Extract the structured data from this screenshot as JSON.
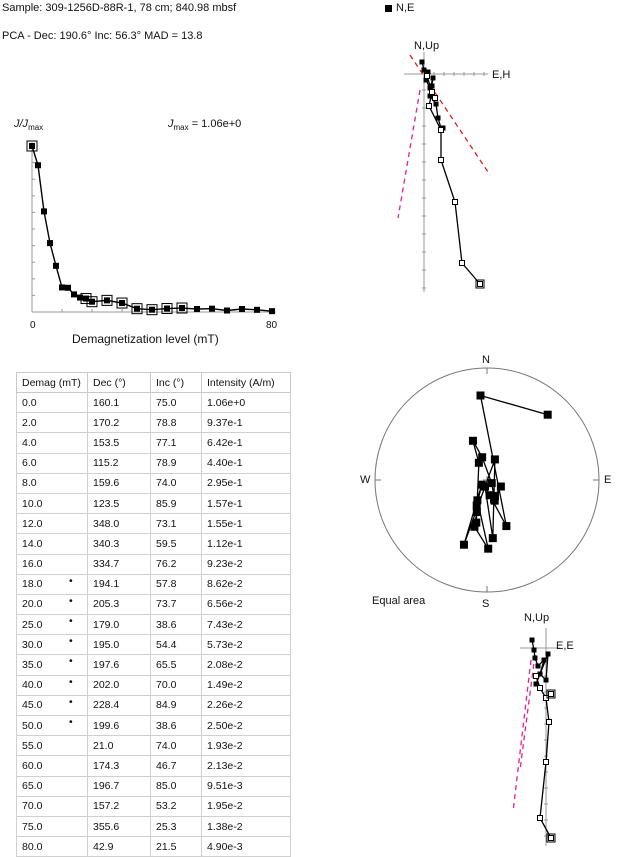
{
  "header": {
    "sample": "Sample: 309-1256D-88R-1, 78 cm; 840.98 mbsf",
    "pca": "PCA - Dec: 190.6°   Inc: 56.3°   MAD = 13.8",
    "legend_label": "N,E"
  },
  "intensity_plot": {
    "ylabel_j": "J/J",
    "ylabel_sub": "max",
    "jmax_label": "J",
    "jmax_sub": "max",
    "jmax_value": "=  1.06e+0",
    "xlabel": "Demagnetization level (mT)",
    "x_tick_0": "0",
    "x_tick_80": "80"
  },
  "stereonet": {
    "n": "N",
    "s": "S",
    "e": "E",
    "w": "W",
    "caption": "Equal area"
  },
  "zijderveld_top": {
    "up_label": "N,Up",
    "h_label": "E,H"
  },
  "zijderveld_bottom": {
    "up_label": "N,Up",
    "h_label": "E,E"
  },
  "table": {
    "headers": [
      "Demag (mT)",
      "Dec (°)",
      "Inc (°)",
      "Intensity (A/m)"
    ],
    "rows": [
      {
        "demag": "0.0",
        "dec": "160.1",
        "inc": "75.0",
        "intensity": "1.06e+0",
        "dot": ""
      },
      {
        "demag": "2.0",
        "dec": "170.2",
        "inc": "78.8",
        "intensity": "9.37e-1",
        "dot": ""
      },
      {
        "demag": "4.0",
        "dec": "153.5",
        "inc": "77.1",
        "intensity": "6.42e-1",
        "dot": ""
      },
      {
        "demag": "6.0",
        "dec": "115.2",
        "inc": "78.9",
        "intensity": "4.40e-1",
        "dot": ""
      },
      {
        "demag": "8.0",
        "dec": "159.6",
        "inc": "74.0",
        "intensity": "2.95e-1",
        "dot": ""
      },
      {
        "demag": "10.0",
        "dec": "123.5",
        "inc": "85.9",
        "intensity": "1.57e-1",
        "dot": ""
      },
      {
        "demag": "12.0",
        "dec": "348.0",
        "inc": "73.1",
        "intensity": "1.55e-1",
        "dot": ""
      },
      {
        "demag": "14.0",
        "dec": "340.3",
        "inc": "59.5",
        "intensity": "1.12e-1",
        "dot": ""
      },
      {
        "demag": "16.0",
        "dec": "334.7",
        "inc": "76.2",
        "intensity": "9.23e-2",
        "dot": ""
      },
      {
        "demag": "18.0",
        "dec": "194.1",
        "inc": "57.8",
        "intensity": "8.62e-2",
        "dot": "•"
      },
      {
        "demag": "20.0",
        "dec": "205.3",
        "inc": "73.7",
        "intensity": "6.56e-2",
        "dot": "•"
      },
      {
        "demag": "25.0",
        "dec": "179.0",
        "inc": "38.6",
        "intensity": "7.43e-2",
        "dot": "•"
      },
      {
        "demag": "30.0",
        "dec": "195.0",
        "inc": "54.4",
        "intensity": "5.73e-2",
        "dot": "•"
      },
      {
        "demag": "35.0",
        "dec": "197.6",
        "inc": "65.5",
        "intensity": "2.08e-2",
        "dot": "•"
      },
      {
        "demag": "40.0",
        "dec": "202.0",
        "inc": "70.0",
        "intensity": "1.49e-2",
        "dot": "•"
      },
      {
        "demag": "45.0",
        "dec": "228.4",
        "inc": "84.9",
        "intensity": "2.26e-2",
        "dot": "•"
      },
      {
        "demag": "50.0",
        "dec": "199.6",
        "inc": "38.6",
        "intensity": "2.50e-2",
        "dot": "•"
      },
      {
        "demag": "55.0",
        "dec": "21.0",
        "inc": "74.0",
        "intensity": "1.93e-2",
        "dot": ""
      },
      {
        "demag": "60.0",
        "dec": "174.3",
        "inc": "46.7",
        "intensity": "2.13e-2",
        "dot": ""
      },
      {
        "demag": "65.0",
        "dec": "196.7",
        "inc": "85.0",
        "intensity": "9.51e-3",
        "dot": ""
      },
      {
        "demag": "70.0",
        "dec": "157.2",
        "inc": "53.2",
        "intensity": "1.95e-2",
        "dot": ""
      },
      {
        "demag": "75.0",
        "dec": "355.6",
        "inc": "25.3",
        "intensity": "1.38e-2",
        "dot": ""
      },
      {
        "demag": "80.0",
        "dec": "42.9",
        "inc": "21.5",
        "intensity": "4.90e-3",
        "dot": ""
      }
    ]
  },
  "chart_data": [
    {
      "type": "line",
      "xlabel": "Demagnetization level (mT)",
      "ylabel": "J/Jmax",
      "xlim": [
        0,
        80
      ],
      "ylim": [
        0,
        1
      ],
      "x": [
        0,
        2,
        4,
        6,
        8,
        10,
        12,
        14,
        16,
        18,
        20,
        25,
        30,
        35,
        40,
        45,
        50,
        55,
        60,
        65,
        70,
        75,
        80
      ],
      "values": [
        1.0,
        0.884,
        0.606,
        0.415,
        0.278,
        0.148,
        0.146,
        0.106,
        0.087,
        0.081,
        0.062,
        0.07,
        0.054,
        0.02,
        0.014,
        0.021,
        0.024,
        0.018,
        0.02,
        0.009,
        0.018,
        0.013,
        0.005
      ]
    },
    {
      "type": "scatter",
      "title": "Equal area",
      "dec": [
        160.1,
        170.2,
        153.5,
        115.2,
        159.6,
        123.5,
        348.0,
        340.3,
        334.7,
        194.1,
        205.3,
        179.0,
        195.0,
        197.6,
        202.0,
        228.4,
        199.6,
        21.0,
        174.3,
        196.7,
        157.2,
        355.6,
        42.9
      ],
      "inc": [
        75.0,
        78.8,
        77.1,
        78.9,
        74.0,
        85.9,
        73.1,
        59.5,
        76.2,
        57.8,
        73.7,
        38.6,
        54.4,
        65.5,
        70.0,
        84.9,
        38.6,
        74.0,
        46.7,
        85.0,
        53.2,
        25.3,
        21.5
      ]
    }
  ],
  "colors": {
    "fit_line": "#e8208a",
    "fit_line_alt": "#e02020",
    "marker": "#000000"
  }
}
